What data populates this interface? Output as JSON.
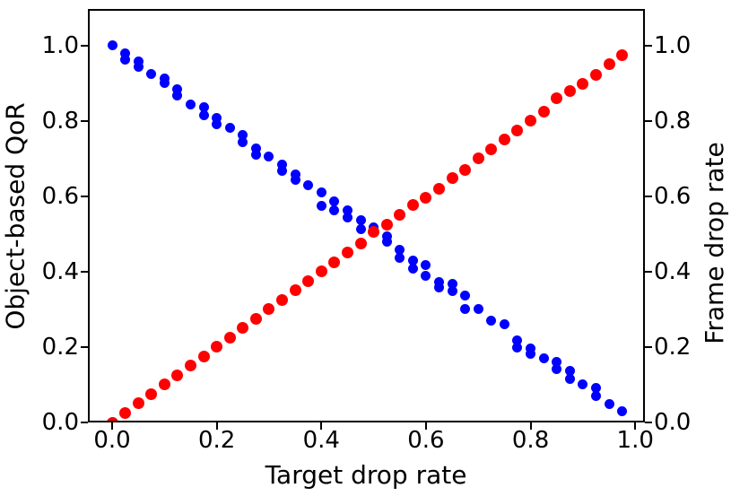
{
  "chart_data": {
    "type": "scatter",
    "title": "",
    "xlabel": "Target drop rate",
    "ylabel_left": "Object-based QoR",
    "ylabel_right": "Frame drop rate",
    "grid": false,
    "legend": "none",
    "xlim": [
      -0.0463,
      1.0185
    ],
    "ylim_left": [
      0.0,
      1.0976
    ],
    "ylim_right": [
      0.0,
      1.0976
    ],
    "x_tick_values": [
      0.0,
      0.2,
      0.4,
      0.6,
      0.8,
      1.0
    ],
    "x_tick_labels": [
      "0.0",
      "0.2",
      "0.4",
      "0.6",
      "0.8",
      "1.0"
    ],
    "y_tick_values": [
      0.0,
      0.2,
      0.4,
      0.6,
      0.8,
      1.0
    ],
    "y_tick_labels_left": [
      "0.0",
      "0.2",
      "0.4",
      "0.6",
      "0.8",
      "1.0"
    ],
    "y_tick_labels_right": [
      "0.0",
      "0.2",
      "0.4",
      "0.6",
      "0.8",
      "1.0"
    ],
    "series": [
      {
        "name": "Object-based QoR",
        "axis": "left",
        "color": "#0000ff",
        "marker": "circle",
        "marker_px": 11,
        "points": [
          [
            0.0,
            1.0
          ],
          [
            0.025,
            0.979
          ],
          [
            0.025,
            0.964
          ],
          [
            0.05,
            0.958
          ],
          [
            0.05,
            0.944
          ],
          [
            0.075,
            0.926
          ],
          [
            0.1,
            0.914
          ],
          [
            0.1,
            0.901
          ],
          [
            0.125,
            0.885
          ],
          [
            0.125,
            0.868
          ],
          [
            0.15,
            0.843
          ],
          [
            0.175,
            0.836
          ],
          [
            0.175,
            0.816
          ],
          [
            0.2,
            0.808
          ],
          [
            0.2,
            0.792
          ],
          [
            0.225,
            0.782
          ],
          [
            0.25,
            0.762
          ],
          [
            0.25,
            0.745
          ],
          [
            0.275,
            0.727
          ],
          [
            0.275,
            0.711
          ],
          [
            0.3,
            0.705
          ],
          [
            0.325,
            0.685
          ],
          [
            0.325,
            0.669
          ],
          [
            0.35,
            0.658
          ],
          [
            0.35,
            0.643
          ],
          [
            0.375,
            0.63
          ],
          [
            0.4,
            0.61
          ],
          [
            0.4,
            0.575
          ],
          [
            0.425,
            0.587
          ],
          [
            0.425,
            0.563
          ],
          [
            0.45,
            0.563
          ],
          [
            0.45,
            0.543
          ],
          [
            0.475,
            0.538
          ],
          [
            0.475,
            0.514
          ],
          [
            0.5,
            0.517
          ],
          [
            0.525,
            0.494
          ],
          [
            0.525,
            0.479
          ],
          [
            0.55,
            0.459
          ],
          [
            0.55,
            0.437
          ],
          [
            0.575,
            0.429
          ],
          [
            0.575,
            0.409
          ],
          [
            0.6,
            0.418
          ],
          [
            0.6,
            0.39
          ],
          [
            0.625,
            0.372
          ],
          [
            0.625,
            0.358
          ],
          [
            0.65,
            0.367
          ],
          [
            0.65,
            0.348
          ],
          [
            0.675,
            0.337
          ],
          [
            0.675,
            0.3
          ],
          [
            0.7,
            0.3
          ],
          [
            0.725,
            0.271
          ],
          [
            0.75,
            0.26
          ],
          [
            0.775,
            0.217
          ],
          [
            0.775,
            0.199
          ],
          [
            0.8,
            0.197
          ],
          [
            0.8,
            0.181
          ],
          [
            0.825,
            0.171
          ],
          [
            0.85,
            0.16
          ],
          [
            0.85,
            0.141
          ],
          [
            0.875,
            0.137
          ],
          [
            0.875,
            0.115
          ],
          [
            0.9,
            0.102
          ],
          [
            0.925,
            0.091
          ],
          [
            0.925,
            0.07
          ],
          [
            0.95,
            0.048
          ],
          [
            0.975,
            0.03
          ]
        ]
      },
      {
        "name": "Frame drop rate",
        "axis": "right",
        "color": "#ff0000",
        "marker": "circle",
        "marker_px": 13,
        "points": [
          [
            0.0,
            0.0
          ],
          [
            0.025,
            0.025
          ],
          [
            0.05,
            0.05
          ],
          [
            0.075,
            0.075
          ],
          [
            0.1,
            0.1
          ],
          [
            0.125,
            0.125
          ],
          [
            0.15,
            0.15
          ],
          [
            0.175,
            0.175
          ],
          [
            0.2,
            0.2
          ],
          [
            0.225,
            0.225
          ],
          [
            0.25,
            0.25
          ],
          [
            0.275,
            0.275
          ],
          [
            0.3,
            0.3
          ],
          [
            0.325,
            0.325
          ],
          [
            0.35,
            0.352
          ],
          [
            0.375,
            0.375
          ],
          [
            0.4,
            0.4
          ],
          [
            0.425,
            0.424
          ],
          [
            0.45,
            0.451
          ],
          [
            0.475,
            0.475
          ],
          [
            0.5,
            0.505
          ],
          [
            0.525,
            0.526
          ],
          [
            0.55,
            0.552
          ],
          [
            0.575,
            0.577
          ],
          [
            0.6,
            0.597
          ],
          [
            0.625,
            0.62
          ],
          [
            0.65,
            0.648
          ],
          [
            0.675,
            0.671
          ],
          [
            0.7,
            0.7
          ],
          [
            0.725,
            0.725
          ],
          [
            0.75,
            0.75
          ],
          [
            0.775,
            0.775
          ],
          [
            0.8,
            0.8
          ],
          [
            0.825,
            0.825
          ],
          [
            0.85,
            0.861
          ],
          [
            0.875,
            0.879
          ],
          [
            0.9,
            0.898
          ],
          [
            0.925,
            0.923
          ],
          [
            0.95,
            0.951
          ],
          [
            0.975,
            0.974
          ]
        ]
      }
    ]
  }
}
